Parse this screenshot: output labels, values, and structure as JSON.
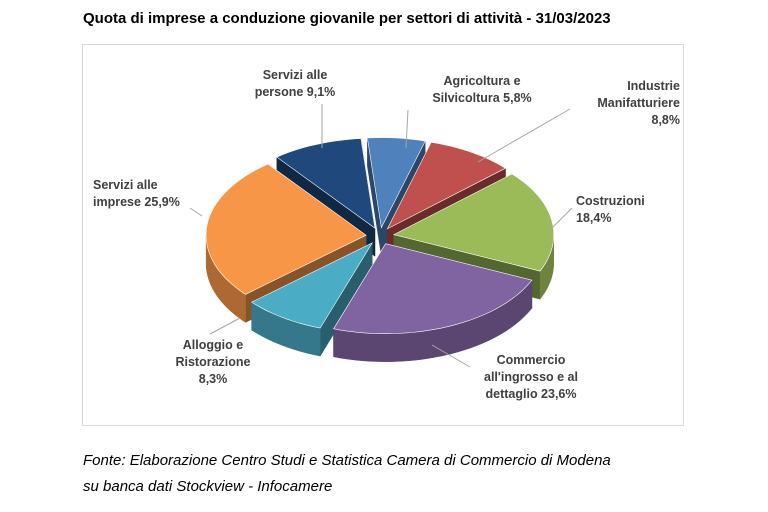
{
  "title": "Quota di imprese a conduzione giovanile per settori di attività - 31/03/2023",
  "source_lines": [
    "Fonte: Elaborazione Centro Studi e Statistica Camera di Commercio di Modena",
    "su banca dati Stockview - Infocamere"
  ],
  "chart_data": {
    "type": "pie",
    "style": "3d-exploded",
    "title": "Quota di imprese a conduzione giovanile per settori di attività - 31/03/2023",
    "legend": "none",
    "slices": [
      {
        "name": "Agricoltura e Silvicoltura",
        "value": 5.8,
        "label_lines": [
          "Agricoltura e",
          "Silvicoltura 5,8%"
        ],
        "color": "#4f81bd"
      },
      {
        "name": "Industrie Manifatturiere",
        "value": 8.8,
        "label_lines": [
          "Industrie",
          "Manifatturiere",
          "8,8%"
        ],
        "color": "#c0504d"
      },
      {
        "name": "Costruzioni",
        "value": 18.4,
        "label_lines": [
          "Costruzioni",
          "18,4%"
        ],
        "color": "#9bbb59"
      },
      {
        "name": "Commercio all'ingrosso e al dettaglio",
        "value": 23.6,
        "label_lines": [
          "Commercio",
          "all'ingrosso e al",
          "dettaglio 23,6%"
        ],
        "color": "#8064a2"
      },
      {
        "name": "Alloggio e Ristorazione",
        "value": 8.3,
        "label_lines": [
          "Alloggio e",
          "Ristorazione",
          "8,3%"
        ],
        "color": "#4bacc6"
      },
      {
        "name": "Servizi alle imprese",
        "value": 25.9,
        "label_lines": [
          "Servizi alle",
          "imprese 25,9%"
        ],
        "color": "#f79646"
      },
      {
        "name": "Servizi alle persone",
        "value": 9.1,
        "label_lines": [
          "Servizi alle",
          "persone 9,1%"
        ],
        "color": "#1f497d"
      }
    ]
  }
}
